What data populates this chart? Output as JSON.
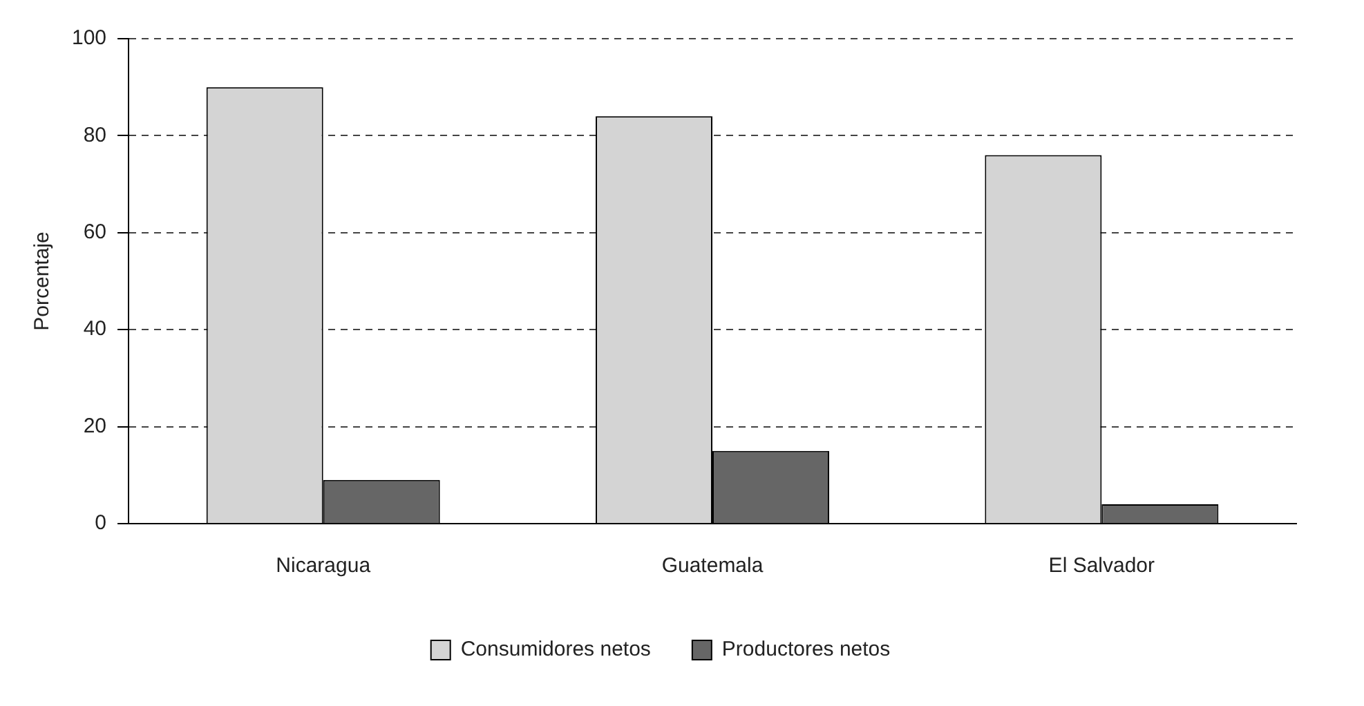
{
  "chart_data": {
    "type": "bar",
    "ylabel": "Porcentaje",
    "categories": [
      "Nicaragua",
      "Guatemala",
      "El Salvador"
    ],
    "series": [
      {
        "name": "Consumidores netos",
        "color": "#d4d4d4",
        "values": [
          90,
          84,
          76
        ]
      },
      {
        "name": "Productores netos",
        "color": "#666666",
        "values": [
          9,
          15,
          4
        ]
      }
    ],
    "ylim": [
      0,
      100
    ],
    "yticks": [
      0,
      20,
      40,
      60,
      80,
      100
    ],
    "grid": "y",
    "legend": "bottom"
  }
}
